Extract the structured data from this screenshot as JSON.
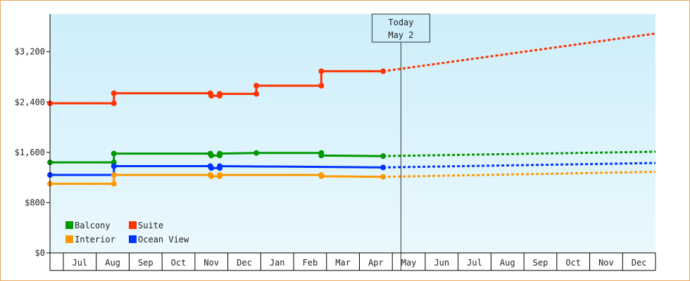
{
  "chart_data": {
    "type": "line",
    "title": "",
    "xlabel": "",
    "ylabel": "",
    "ylim": [
      0,
      3800
    ],
    "y_ticks": [
      "$0",
      "$800",
      "$1,600",
      "$2,400",
      "$3,200"
    ],
    "y_tick_values": [
      0,
      800,
      1600,
      2400,
      3200
    ],
    "x_tick_labels": [
      "Jul",
      "Aug",
      "Sep",
      "Oct",
      "Nov",
      "Dec",
      "Jan",
      "Feb",
      "Mar",
      "Apr",
      "May",
      "Jun",
      "Jul",
      "Aug",
      "Sep",
      "Oct",
      "Nov",
      "Dec"
    ],
    "xlim": [
      "2025-06-01",
      "2026-12-31"
    ],
    "today": {
      "line1": "Today",
      "line2": "May 2",
      "date": "2026-05-02"
    },
    "legend": {
      "position": "bottom-left"
    },
    "series": [
      {
        "name": "Suite",
        "color": "#ff3300",
        "actual": [
          [
            "2025-06-01",
            2380
          ],
          [
            "2025-08-01",
            2380
          ],
          [
            "2025-08-01",
            2540
          ],
          [
            "2025-11-01",
            2540
          ],
          [
            "2025-11-02",
            2500
          ],
          [
            "2025-11-10",
            2500
          ],
          [
            "2025-11-10",
            2530
          ],
          [
            "2025-12-15",
            2530
          ],
          [
            "2025-12-15",
            2660
          ],
          [
            "2026-02-15",
            2660
          ],
          [
            "2026-02-15",
            2890
          ],
          [
            "2026-04-15",
            2890
          ]
        ],
        "forecast": [
          [
            "2026-04-15",
            2890
          ],
          [
            "2026-12-31",
            3490
          ]
        ]
      },
      {
        "name": "Balcony",
        "color": "#009900",
        "actual": [
          [
            "2025-06-01",
            1440
          ],
          [
            "2025-08-01",
            1440
          ],
          [
            "2025-08-01",
            1580
          ],
          [
            "2025-11-01",
            1580
          ],
          [
            "2025-11-02",
            1550
          ],
          [
            "2025-11-10",
            1550
          ],
          [
            "2025-11-10",
            1580
          ],
          [
            "2025-12-15",
            1590
          ],
          [
            "2026-02-15",
            1590
          ],
          [
            "2026-02-15",
            1550
          ],
          [
            "2026-04-15",
            1540
          ]
        ],
        "forecast": [
          [
            "2026-04-15",
            1540
          ],
          [
            "2026-12-31",
            1610
          ]
        ]
      },
      {
        "name": "Ocean View",
        "color": "#0033ff",
        "actual": [
          [
            "2025-06-01",
            1240
          ],
          [
            "2025-08-01",
            1240
          ],
          [
            "2025-08-01",
            1380
          ],
          [
            "2025-11-01",
            1380
          ],
          [
            "2025-11-02",
            1350
          ],
          [
            "2025-11-10",
            1350
          ],
          [
            "2025-11-10",
            1380
          ],
          [
            "2026-04-15",
            1360
          ]
        ],
        "forecast": [
          [
            "2026-04-15",
            1360
          ],
          [
            "2026-12-31",
            1430
          ]
        ]
      },
      {
        "name": "Interior",
        "color": "#ff9900",
        "actual": [
          [
            "2025-06-01",
            1100
          ],
          [
            "2025-08-01",
            1100
          ],
          [
            "2025-08-01",
            1240
          ],
          [
            "2025-11-01",
            1240
          ],
          [
            "2025-11-02",
            1220
          ],
          [
            "2025-11-10",
            1220
          ],
          [
            "2025-11-10",
            1240
          ],
          [
            "2026-02-15",
            1240
          ],
          [
            "2026-02-15",
            1220
          ],
          [
            "2026-04-15",
            1210
          ]
        ],
        "forecast": [
          [
            "2026-04-15",
            1210
          ],
          [
            "2026-12-31",
            1290
          ]
        ]
      }
    ],
    "legend_order": [
      "Balcony",
      "Suite",
      "Interior",
      "Ocean View"
    ],
    "colors": {
      "plot_bg_top": "#cdeefa",
      "plot_bg_bottom": "#eaf8fd",
      "frame_border": "#e8a860",
      "axis": "#000000"
    }
  }
}
